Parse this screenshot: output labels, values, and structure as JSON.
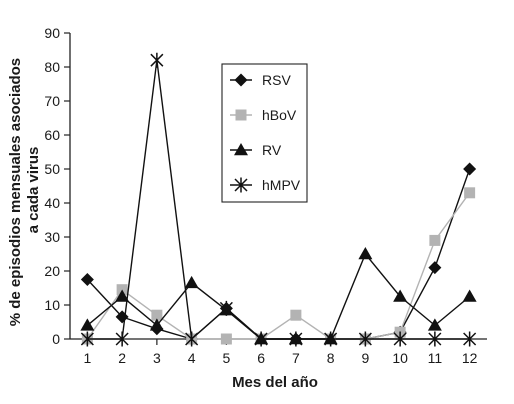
{
  "chart_data": {
    "type": "line",
    "title": "",
    "xlabel": "Mes del año",
    "ylabel_lines": [
      "% de episodios mensuales asociados",
      "a cada virus"
    ],
    "x": [
      1,
      2,
      3,
      4,
      5,
      6,
      7,
      8,
      9,
      10,
      11,
      12
    ],
    "ylim": [
      0,
      90
    ],
    "yticks": [
      0,
      10,
      20,
      30,
      40,
      50,
      60,
      70,
      80,
      90
    ],
    "grid": false,
    "legend_position": "top-right",
    "series": [
      {
        "name": "RSV",
        "marker": "diamond",
        "color": "#111111",
        "values": [
          17.5,
          6.5,
          3,
          0,
          9,
          0,
          0,
          0,
          0,
          2,
          21,
          50
        ]
      },
      {
        "name": "hBoV",
        "marker": "square",
        "color": "#b3b3b3",
        "values": [
          0,
          14.5,
          7,
          0,
          0,
          0,
          7,
          0,
          0,
          2,
          29,
          43
        ]
      },
      {
        "name": "RV",
        "marker": "triangle",
        "color": "#111111",
        "values": [
          4,
          12.5,
          4,
          16.5,
          8.5,
          0,
          0,
          0,
          25,
          12.5,
          4,
          12.5
        ]
      },
      {
        "name": "hMPV",
        "marker": "star",
        "color": "#111111",
        "values": [
          0,
          0,
          82,
          0,
          9,
          0,
          0,
          0,
          0,
          0,
          0,
          0
        ]
      }
    ]
  }
}
